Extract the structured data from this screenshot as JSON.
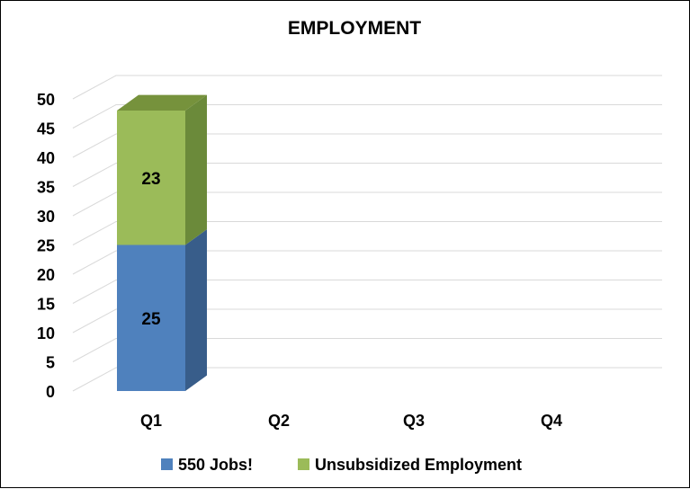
{
  "chart_data": {
    "type": "bar",
    "stacked": true,
    "three_d": true,
    "title": "EMPLOYMENT",
    "categories": [
      "Q1",
      "Q2",
      "Q3",
      "Q4"
    ],
    "series": [
      {
        "name": "550 Jobs!",
        "values": [
          25,
          null,
          null,
          null
        ],
        "color": "#4f81bd",
        "side_color": "#385d8a",
        "top_color": "#5b8ccb"
      },
      {
        "name": "Unsubsidized Employment",
        "values": [
          23,
          null,
          null,
          null
        ],
        "color": "#9bbb59",
        "side_color": "#6b8a3a",
        "top_color": "#76923c"
      }
    ],
    "yticks": [
      0,
      5,
      10,
      15,
      20,
      25,
      30,
      35,
      40,
      45,
      50
    ],
    "ylim": [
      0,
      50
    ],
    "grid": true,
    "legend_position": "bottom",
    "data_labels": true
  }
}
